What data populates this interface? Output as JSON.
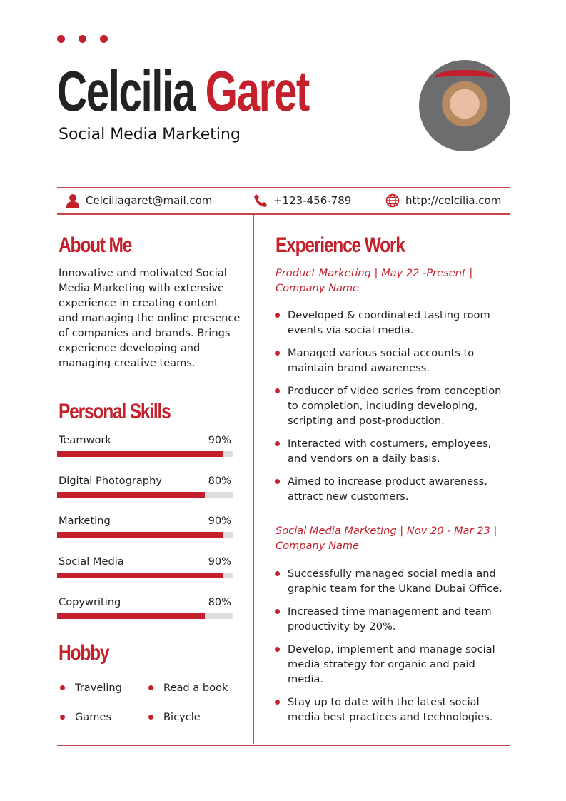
{
  "header": {
    "first_name": "Celcilia",
    "last_name": "Garet",
    "role": "Social Media Marketing"
  },
  "contact": {
    "email": "Celciliagaret@mail.com",
    "phone": "+123-456-789",
    "website": "http://celcilia.com"
  },
  "about": {
    "title": "About Me",
    "text": "Innovative and motivated Social Media Marketing with extensive experience in creating content and managing the online presence of companies and brands. Brings experience developing and managing creative teams."
  },
  "skills": {
    "title": "Personal Skills",
    "items": [
      {
        "label": "Teamwork",
        "value": "90%",
        "level": 90
      },
      {
        "label": "Digital Photography",
        "value": "80%",
        "level": 80
      },
      {
        "label": "Marketing",
        "value": "90%",
        "level": 90
      },
      {
        "label": "Social Media",
        "value": "90%",
        "level": 90
      },
      {
        "label": "Copywriting",
        "value": "80%",
        "level": 80
      }
    ]
  },
  "hobby": {
    "title": "Hobby",
    "items": [
      "Traveling",
      "Read a book",
      "Games",
      "Bicycle"
    ]
  },
  "experience": {
    "title": "Experience Work",
    "jobs": [
      {
        "heading": "Product Marketing | May 22 -Present | Company Name",
        "bullets": [
          "Developed & coordinated tasting room events via social media.",
          "Managed various social accounts to maintain brand awareness.",
          "Producer of video series from conception to completion, including developing, scripting and post-production.",
          "Interacted with costumers, employees, and vendors on a daily basis.",
          "Aimed to increase product awareness, attract new customers."
        ]
      },
      {
        "heading": "Social Media Marketing | Nov 20 - Mar 23 | Company Name",
        "bullets": [
          "Successfully managed social media and graphic team for the Ukand Dubai Office.",
          "Increased time management and team productivity by 20%.",
          "Develop, implement and manage social media strategy for organic and paid media.",
          "Stay up to date with the latest social media best practices and technologies."
        ]
      }
    ]
  },
  "colors": {
    "accent": "#c3202b"
  }
}
